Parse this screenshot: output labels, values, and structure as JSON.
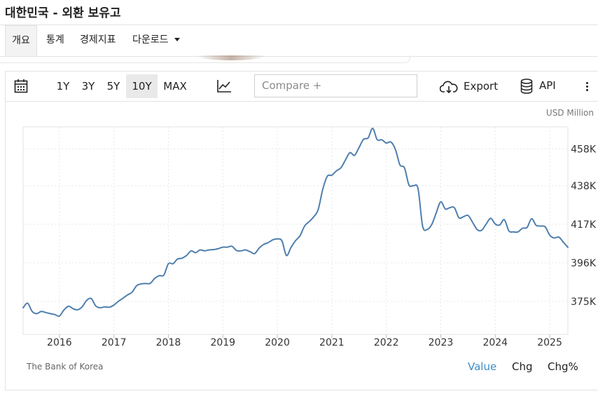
{
  "page": {
    "title": "대한민국 - 외환 보유고"
  },
  "nav": {
    "tabs": [
      {
        "label": "개요",
        "active": true
      },
      {
        "label": "통계",
        "active": false
      },
      {
        "label": "경제지표",
        "active": false
      },
      {
        "label": "다운로드",
        "active": false,
        "has_dropdown": true
      }
    ]
  },
  "toolbar": {
    "calendar_icon": "calendar-icon",
    "ranges": [
      {
        "label": "1Y",
        "active": false
      },
      {
        "label": "3Y",
        "active": false
      },
      {
        "label": "5Y",
        "active": false
      },
      {
        "label": "10Y",
        "active": true
      },
      {
        "label": "MAX",
        "active": false
      }
    ],
    "chart_type_icon": "line-chart-icon",
    "compare_placeholder": "Compare +",
    "export_label": "Export",
    "export_icon": "cloud-download-icon",
    "api_label": "API",
    "api_icon": "database-icon",
    "more_icon": "more-vertical-icon"
  },
  "footer": {
    "source": "The Bank of Korea",
    "value_tabs": [
      {
        "label": "Value",
        "active": true
      },
      {
        "label": "Chg",
        "active": false
      },
      {
        "label": "Chg%",
        "active": false
      }
    ]
  },
  "colors": {
    "line": "#4e7fad",
    "active_tab": "#3f8dc8"
  },
  "chart_data": {
    "type": "line",
    "title": "",
    "unit": "USD Million",
    "xlabel": "",
    "ylabel": "",
    "x_ticks": [
      "2016",
      "2017",
      "2018",
      "2019",
      "2020",
      "2021",
      "2022",
      "2023",
      "2024",
      "2025"
    ],
    "y_ticks": [
      375000,
      396000,
      417000,
      438000,
      458000
    ],
    "y_tick_labels": [
      "375K",
      "396K",
      "417K",
      "438K",
      "458K"
    ],
    "xlim": [
      "2015-05",
      "2025-05"
    ],
    "ylim": [
      357000,
      470000
    ],
    "grid": true,
    "series": [
      {
        "name": "",
        "x": [
          "2015-05",
          "2015-06",
          "2015-07",
          "2015-08",
          "2015-09",
          "2015-10",
          "2015-11",
          "2015-12",
          "2016-01",
          "2016-02",
          "2016-03",
          "2016-04",
          "2016-05",
          "2016-06",
          "2016-07",
          "2016-08",
          "2016-09",
          "2016-10",
          "2016-11",
          "2016-12",
          "2017-01",
          "2017-02",
          "2017-03",
          "2017-04",
          "2017-05",
          "2017-06",
          "2017-07",
          "2017-08",
          "2017-09",
          "2017-10",
          "2017-11",
          "2017-12",
          "2018-01",
          "2018-02",
          "2018-03",
          "2018-04",
          "2018-05",
          "2018-06",
          "2018-07",
          "2018-08",
          "2018-09",
          "2018-10",
          "2018-11",
          "2018-12",
          "2019-01",
          "2019-02",
          "2019-03",
          "2019-04",
          "2019-05",
          "2019-06",
          "2019-07",
          "2019-08",
          "2019-09",
          "2019-10",
          "2019-11",
          "2019-12",
          "2020-01",
          "2020-02",
          "2020-03",
          "2020-04",
          "2020-05",
          "2020-06",
          "2020-07",
          "2020-08",
          "2020-09",
          "2020-10",
          "2020-11",
          "2020-12",
          "2021-01",
          "2021-02",
          "2021-03",
          "2021-04",
          "2021-05",
          "2021-06",
          "2021-07",
          "2021-08",
          "2021-09",
          "2021-10",
          "2021-11",
          "2021-12",
          "2022-01",
          "2022-02",
          "2022-03",
          "2022-04",
          "2022-05",
          "2022-06",
          "2022-07",
          "2022-08",
          "2022-09",
          "2022-10",
          "2022-11",
          "2022-12",
          "2023-01",
          "2023-02",
          "2023-03",
          "2023-04",
          "2023-05",
          "2023-06",
          "2023-07",
          "2023-08",
          "2023-09",
          "2023-10",
          "2023-11",
          "2023-12",
          "2024-01",
          "2024-02",
          "2024-03",
          "2024-04",
          "2024-05",
          "2024-06",
          "2024-07",
          "2024-08",
          "2024-09",
          "2024-10",
          "2024-11",
          "2024-12",
          "2025-01",
          "2025-02",
          "2025-03",
          "2025-04",
          "2025-05"
        ],
        "y": [
          371500,
          374000,
          369500,
          368300,
          369500,
          368900,
          368300,
          367800,
          367000,
          370300,
          372300,
          371000,
          370400,
          372000,
          375500,
          376500,
          372500,
          371500,
          372000,
          371800,
          373000,
          375000,
          376700,
          378500,
          380000,
          383500,
          384500,
          384700,
          384800,
          387500,
          389000,
          389300,
          395500,
          395500,
          398000,
          398500,
          400000,
          402500,
          401500,
          403000,
          402500,
          403000,
          403200,
          403700,
          404500,
          404500,
          405000,
          402700,
          402500,
          403000,
          402000,
          401000,
          404000,
          406000,
          407000,
          408500,
          409000,
          408000,
          400000,
          404300,
          408000,
          410700,
          416000,
          418400,
          421000,
          425000,
          436000,
          443100,
          443700,
          446000,
          447700,
          452000,
          456000,
          454500,
          458800,
          463300,
          464000,
          469200,
          463000,
          463000,
          461200,
          461800,
          457800,
          449300,
          447700,
          438300,
          438000,
          436300,
          416000,
          414100,
          416800,
          423200,
          429200,
          425300,
          426000,
          426000,
          420500,
          421100,
          421800,
          418100,
          414100,
          413700,
          417100,
          420200,
          417100,
          416600,
          419500,
          413400,
          412800,
          412800,
          414800,
          415200,
          420000,
          416400,
          416000,
          415600,
          411000,
          409500,
          410000,
          407200,
          404400
        ]
      }
    ]
  }
}
